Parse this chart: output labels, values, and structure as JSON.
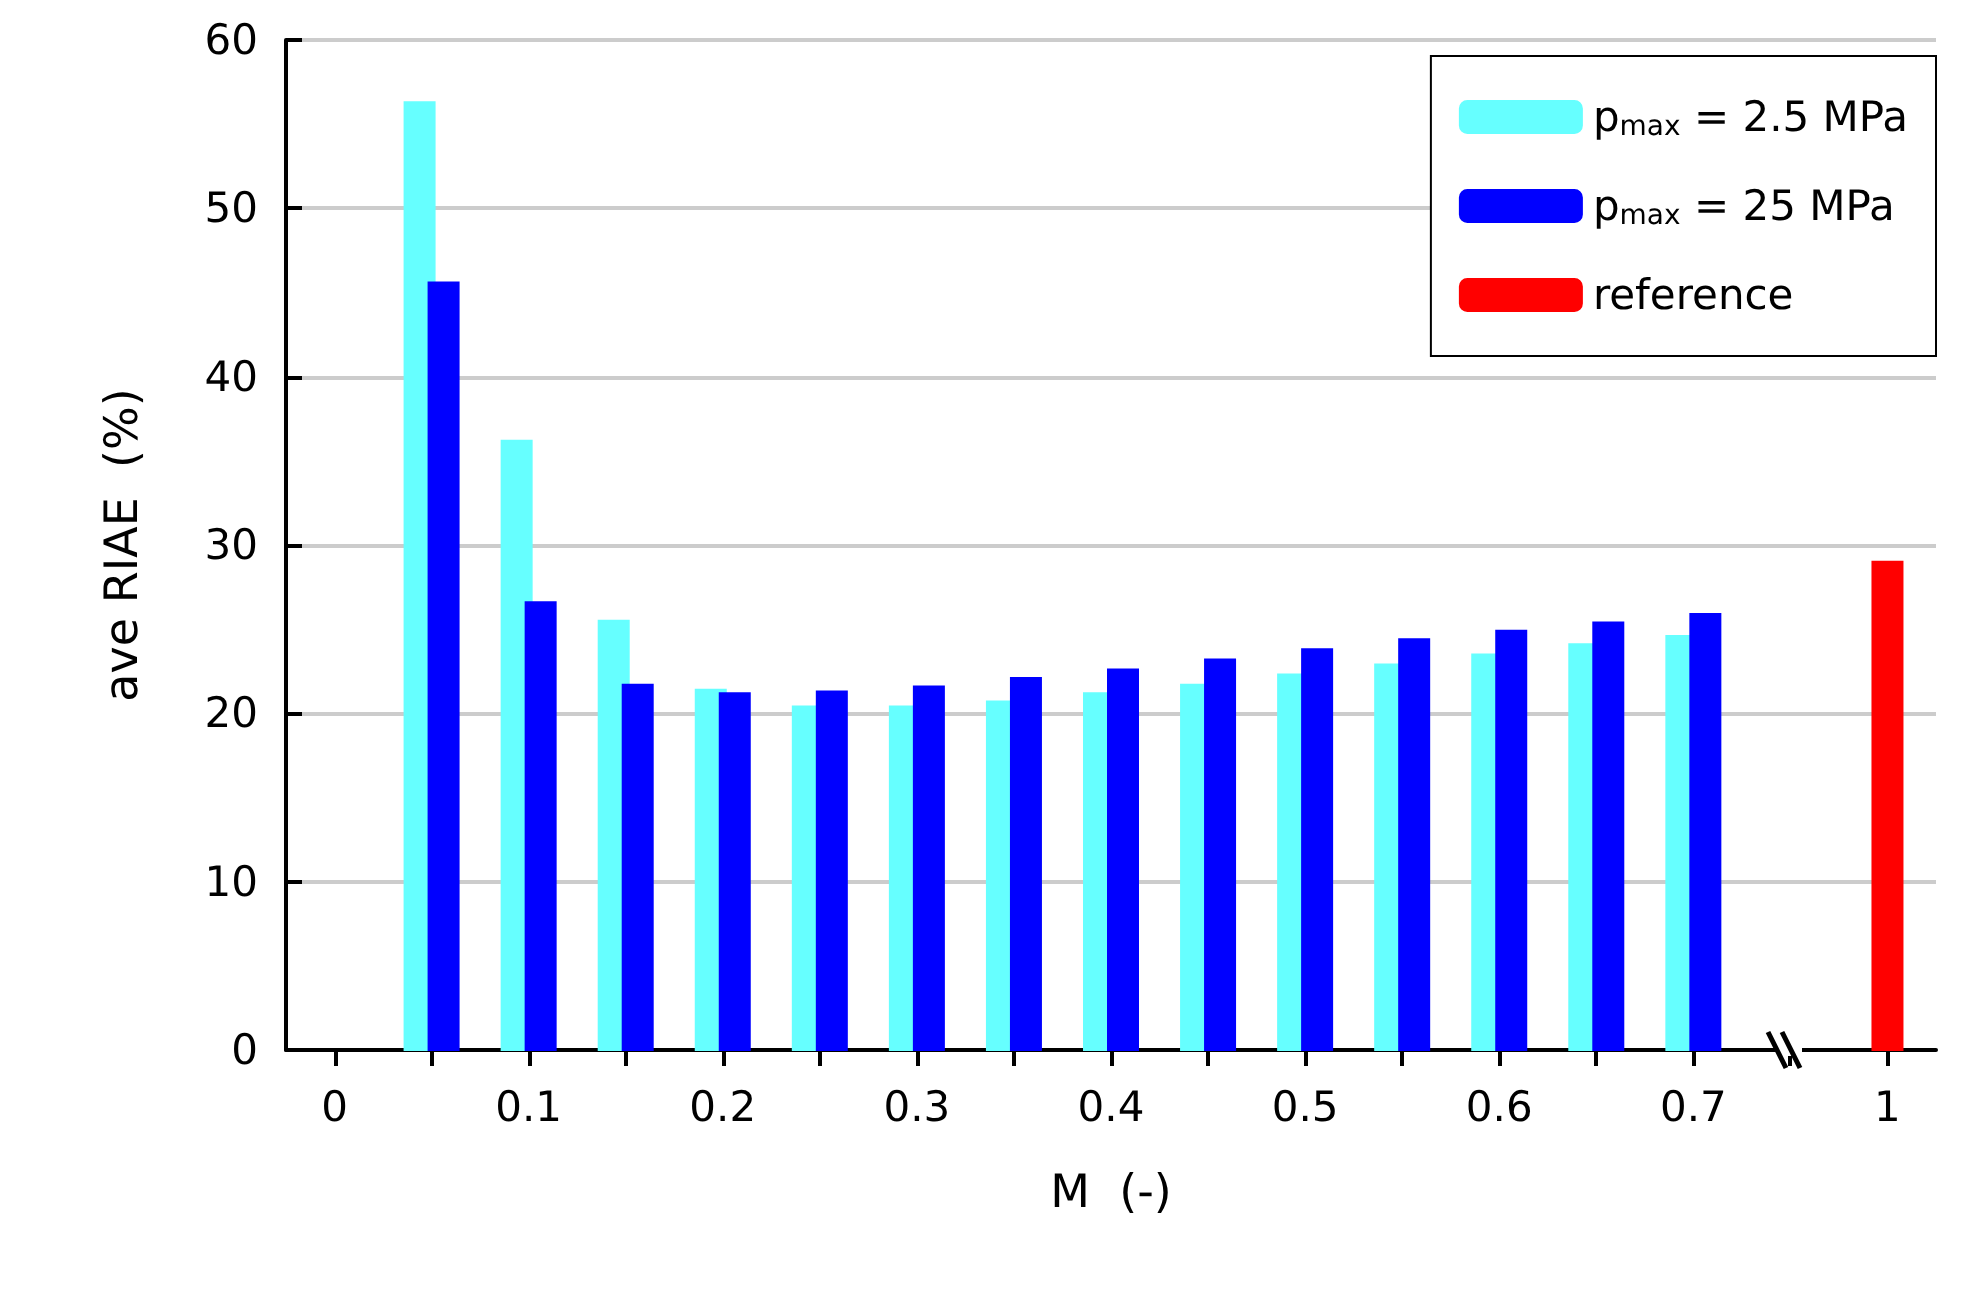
{
  "chart_data": {
    "type": "bar",
    "xlabel": "M  (-)",
    "ylabel": "ave RIAE  (%)",
    "categories": [
      "0",
      null,
      "0.1",
      null,
      "0.2",
      null,
      "0.3",
      null,
      "0.4",
      null,
      "0.5",
      null,
      "0.6",
      null,
      "0.7",
      null,
      "1"
    ],
    "series": [
      {
        "name": "p$_{max}$ = 2.5 MPa",
        "color": "#66ffff",
        "values": [
          null,
          56.3,
          36.2,
          25.5,
          21.4,
          20.4,
          20.4,
          20.7,
          21.2,
          21.7,
          22.3,
          22.9,
          23.5,
          24.1,
          24.6,
          null,
          null
        ]
      },
      {
        "name": "p$_{max}$ = 25 MPa",
        "color": "#0000ff",
        "values": [
          null,
          45.6,
          26.6,
          21.7,
          21.2,
          21.3,
          21.6,
          22.1,
          22.6,
          23.2,
          23.8,
          24.4,
          24.9,
          25.4,
          25.9,
          null,
          null
        ]
      },
      {
        "name": "reference",
        "color": "#ff0000",
        "values": [
          null,
          null,
          null,
          null,
          null,
          null,
          null,
          null,
          null,
          null,
          null,
          null,
          null,
          null,
          null,
          null,
          29.0
        ]
      }
    ],
    "ylim": [
      0,
      60
    ],
    "yticks": [
      0,
      10,
      20,
      30,
      40,
      50,
      60
    ],
    "grid": "y",
    "legend": "top right"
  }
}
